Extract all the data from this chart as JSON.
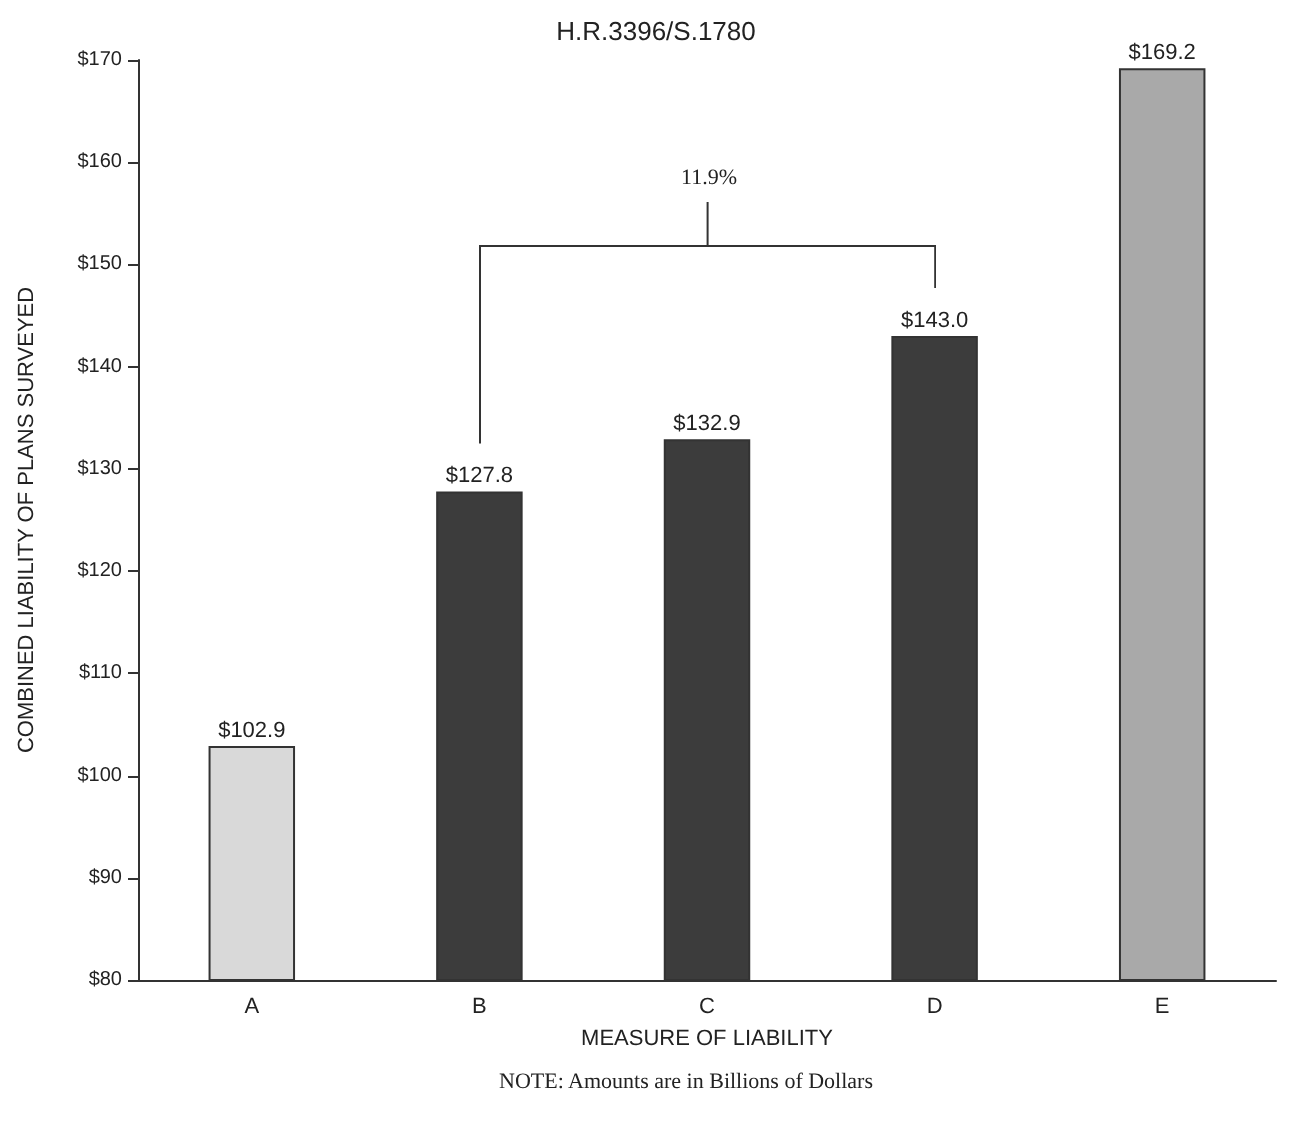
{
  "chart_data": {
    "type": "bar",
    "title": "H.R.3396/S.1780",
    "xlabel": "MEASURE OF LIABILITY",
    "ylabel": "COMBINED LIABILITY OF PLANS SURVEYED",
    "categories": [
      "A",
      "B",
      "C",
      "D",
      "E"
    ],
    "values": [
      102.9,
      127.8,
      132.9,
      143.0,
      169.2
    ],
    "colors": [
      "#d9d9d9",
      "#3c3c3c",
      "#3c3c3c",
      "#3c3c3c",
      "#a9a9a9"
    ],
    "value_labels": [
      "$102.9",
      "$127.8",
      "$132.9",
      "$143.0",
      "$169.2"
    ],
    "ylim": [
      80,
      170
    ],
    "yticks": [
      {
        "value": 80,
        "label": "$80"
      },
      {
        "value": 90,
        "label": "$90"
      },
      {
        "value": 100,
        "label": "$100"
      },
      {
        "value": 110,
        "label": "$110"
      },
      {
        "value": 120,
        "label": "$120"
      },
      {
        "value": 130,
        "label": "$130"
      },
      {
        "value": 140,
        "label": "$140"
      },
      {
        "value": 150,
        "label": "$150"
      },
      {
        "value": 160,
        "label": "$160"
      },
      {
        "value": 170,
        "label": "$170"
      }
    ],
    "annotations": [
      "11.9%",
      "NOTE: Amounts are in Billions of Dollars"
    ],
    "grid": false
  }
}
